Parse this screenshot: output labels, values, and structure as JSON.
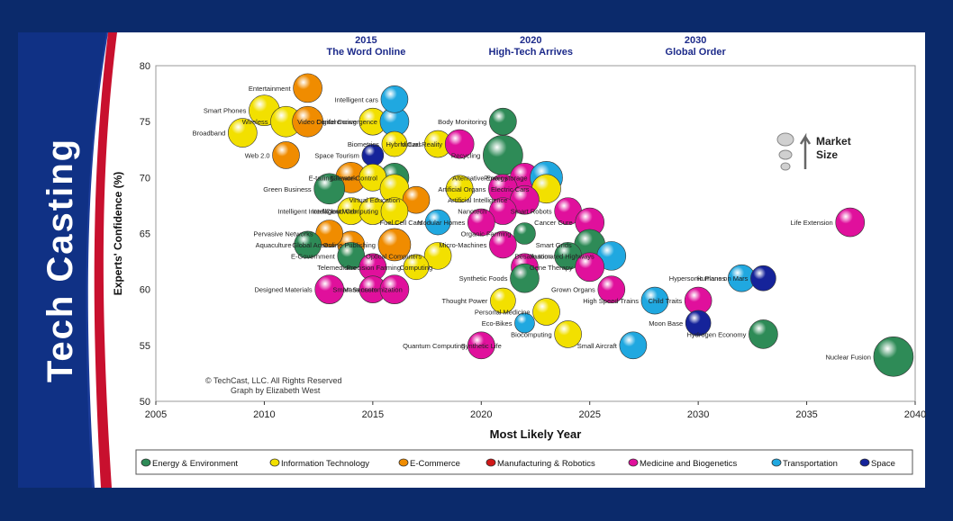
{
  "sidebar": {
    "title": "Tech Casting"
  },
  "copyright": {
    "line1": "© TechCast, LLC. All Rights Reserved",
    "line2": "Graph by Elizabeth West"
  },
  "size_legend": {
    "label_line1": "Market",
    "label_line2": "Size"
  },
  "chart_data": {
    "type": "scatter",
    "title": "",
    "xlabel": "Most Likely Year",
    "ylabel": "Experts' Confidence (%)",
    "xlim": [
      2005,
      2040
    ],
    "ylim": [
      50,
      80
    ],
    "xticks": [
      2005,
      2010,
      2015,
      2020,
      2025,
      2030,
      2035,
      2040
    ],
    "yticks": [
      50,
      55,
      60,
      65,
      70,
      75,
      80
    ],
    "grid": "horizontal dashed",
    "eras": [
      {
        "year": 2010,
        "label_year": "2015",
        "label": "The Word Online"
      },
      {
        "year": 2020,
        "label_year": "2020",
        "label": "High-Tech Arrives"
      },
      {
        "year": 2030,
        "label_year": "2030",
        "label": "Global Order"
      }
    ],
    "legend_position": "bottom",
    "categories": [
      {
        "name": "Energy & Environment",
        "color": "#2e8b57"
      },
      {
        "name": "Information Technology",
        "color": "#f2e000"
      },
      {
        "name": "E-Commerce",
        "color": "#f08c00"
      },
      {
        "name": "Manufacturing & Robotics",
        "color": "#d01818"
      },
      {
        "name": "Medicine and Biogenetics",
        "color": "#e0109c"
      },
      {
        "name": "Transportation",
        "color": "#20a8e0"
      },
      {
        "name": "Space",
        "color": "#15239a"
      }
    ],
    "points": [
      {
        "label": "Entertainment",
        "x": 2012,
        "y": 78,
        "size": 1.0,
        "cat": 2
      },
      {
        "label": "Smart Phones",
        "x": 2010,
        "y": 76,
        "size": 1.1,
        "cat": 1
      },
      {
        "label": "Broadband",
        "x": 2009,
        "y": 74,
        "size": 1.0,
        "cat": 1
      },
      {
        "label": "Wireless",
        "x": 2011,
        "y": 75,
        "size": 1.1,
        "cat": 1
      },
      {
        "label": "Web 2.0",
        "x": 2011,
        "y": 72,
        "size": 0.9,
        "cat": 2
      },
      {
        "label": "",
        "x": 2012,
        "y": 75,
        "size": 1.1,
        "cat": 2
      },
      {
        "label": "Video Conferencing",
        "x": 2015,
        "y": 75,
        "size": 0.9,
        "cat": 1
      },
      {
        "label": "Digital Convergence",
        "x": 2016,
        "y": 75,
        "size": 1.0,
        "cat": 5
      },
      {
        "label": "Intelligent cars",
        "x": 2016,
        "y": 77,
        "size": 0.9,
        "cat": 5
      },
      {
        "label": "Hybrid Cars",
        "x": 2018,
        "y": 73,
        "size": 0.9,
        "cat": 1
      },
      {
        "label": "Virtual Reality",
        "x": 2019,
        "y": 73,
        "size": 1.0,
        "cat": 4
      },
      {
        "label": "Space Tourism",
        "x": 2015,
        "y": 72,
        "size": 0.6,
        "cat": 6
      },
      {
        "label": "Biometrics",
        "x": 2016,
        "y": 73,
        "size": 0.8,
        "cat": 1
      },
      {
        "label": "Climate Control",
        "x": 2016,
        "y": 70,
        "size": 1.0,
        "cat": 0
      },
      {
        "label": "E-tailing",
        "x": 2014,
        "y": 70,
        "size": 1.1,
        "cat": 2
      },
      {
        "label": "Green Business",
        "x": 2013,
        "y": 69,
        "size": 1.1,
        "cat": 0
      },
      {
        "label": "Telework",
        "x": 2015,
        "y": 70,
        "size": 0.9,
        "cat": 1
      },
      {
        "label": "",
        "x": 2016,
        "y": 69,
        "size": 1.0,
        "cat": 1
      },
      {
        "label": "Virtual Education",
        "x": 2017,
        "y": 68,
        "size": 0.9,
        "cat": 2
      },
      {
        "label": "",
        "x": 2019,
        "y": 69,
        "size": 0.9,
        "cat": 1
      },
      {
        "label": "Intelligent Interface",
        "x": 2014,
        "y": 67,
        "size": 0.9,
        "cat": 1
      },
      {
        "label": "Intelligent Web",
        "x": 2015,
        "y": 67,
        "size": 0.9,
        "cat": 1
      },
      {
        "label": "Cloud Computing",
        "x": 2016,
        "y": 67,
        "size": 0.9,
        "cat": 1
      },
      {
        "label": "Global Access",
        "x": 2014,
        "y": 64,
        "size": 0.9,
        "cat": 2
      },
      {
        "label": "Pervasive Networks",
        "x": 2013,
        "y": 65,
        "size": 0.9,
        "cat": 2
      },
      {
        "label": "Fuel Cell Cars",
        "x": 2018,
        "y": 66,
        "size": 0.8,
        "cat": 5
      },
      {
        "label": "Online Publishing",
        "x": 2016,
        "y": 64,
        "size": 1.2,
        "cat": 2
      },
      {
        "label": "Aquaculture",
        "x": 2012,
        "y": 64,
        "size": 0.9,
        "cat": 0
      },
      {
        "label": "E-Government",
        "x": 2014,
        "y": 63,
        "size": 0.9,
        "cat": 0
      },
      {
        "label": "Optical Computers",
        "x": 2018,
        "y": 63,
        "size": 0.9,
        "cat": 1
      },
      {
        "label": "Precision Farming",
        "x": 2017,
        "y": 62,
        "size": 0.8,
        "cat": 1
      },
      {
        "label": "Telemedicine",
        "x": 2015,
        "y": 62,
        "size": 0.9,
        "cat": 4
      },
      {
        "label": "",
        "x": 2015,
        "y": 60,
        "size": 0.9,
        "cat": 4
      },
      {
        "label": "Designed Materials",
        "x": 2013,
        "y": 60,
        "size": 1.0,
        "cat": 4
      },
      {
        "label": "Smart Sensors",
        "x": 2016,
        "y": 60,
        "size": 1.0,
        "cat": 4
      },
      {
        "label": "Body Monitoring",
        "x": 2021,
        "y": 75,
        "size": 0.9,
        "cat": 0
      },
      {
        "label": "Recycling",
        "x": 2021,
        "y": 72,
        "size": 1.6,
        "cat": 0
      },
      {
        "label": "Alternative Energy",
        "x": 2022,
        "y": 70,
        "size": 1.0,
        "cat": 4
      },
      {
        "label": "Power storage",
        "x": 2023,
        "y": 70,
        "size": 1.2,
        "cat": 5
      },
      {
        "label": "Electric Cars",
        "x": 2023,
        "y": 69,
        "size": 1.0,
        "cat": 1
      },
      {
        "label": "Artificial Organs",
        "x": 2021,
        "y": 69,
        "size": 1.0,
        "cat": 4
      },
      {
        "label": "Artificial Intelligence",
        "x": 2022,
        "y": 68,
        "size": 1.0,
        "cat": 4
      },
      {
        "label": "Nanotech",
        "x": 2021,
        "y": 67,
        "size": 0.9,
        "cat": 4
      },
      {
        "label": "Modular Homes",
        "x": 2020,
        "y": 66,
        "size": 0.9,
        "cat": 4
      },
      {
        "label": "Smart Robots",
        "x": 2024,
        "y": 67,
        "size": 0.9,
        "cat": 4
      },
      {
        "label": "Cancer Cure",
        "x": 2025,
        "y": 66,
        "size": 1.0,
        "cat": 4
      },
      {
        "label": "Organic Farming",
        "x": 2022,
        "y": 65,
        "size": 0.6,
        "cat": 0
      },
      {
        "label": "Smart Grids",
        "x": 2025,
        "y": 64,
        "size": 1.1,
        "cat": 0
      },
      {
        "label": "Automated Highways",
        "x": 2026,
        "y": 63,
        "size": 1.0,
        "cat": 5
      },
      {
        "label": "Micro-Machines",
        "x": 2021,
        "y": 64,
        "size": 0.9,
        "cat": 4
      },
      {
        "label": "Desalination",
        "x": 2024,
        "y": 63,
        "size": 0.9,
        "cat": 0
      },
      {
        "label": "",
        "x": 2022,
        "y": 62,
        "size": 0.9,
        "cat": 4
      },
      {
        "label": "Synthetic Foods",
        "x": 2022,
        "y": 61,
        "size": 1.0,
        "cat": 0
      },
      {
        "label": "Gene Therapy",
        "x": 2025,
        "y": 62,
        "size": 1.0,
        "cat": 4
      },
      {
        "label": "Grown Organs",
        "x": 2026,
        "y": 60,
        "size": 0.9,
        "cat": 4
      },
      {
        "label": "Thought Power",
        "x": 2021,
        "y": 59,
        "size": 0.8,
        "cat": 1
      },
      {
        "label": "Personal Medicine",
        "x": 2023,
        "y": 58,
        "size": 0.9,
        "cat": 1
      },
      {
        "label": "Eco-Bikes",
        "x": 2022,
        "y": 57,
        "size": 0.5,
        "cat": 5
      },
      {
        "label": "Biocomputing",
        "x": 2024,
        "y": 56,
        "size": 0.9,
        "cat": 1
      },
      {
        "label": "High Speed Trains",
        "x": 2028,
        "y": 59,
        "size": 0.9,
        "cat": 5
      },
      {
        "label": "Quantum Computing",
        "x": 2020,
        "y": 55,
        "size": 0.9,
        "cat": 4
      },
      {
        "label": "Small Aircraft",
        "x": 2027,
        "y": 55,
        "size": 0.9,
        "cat": 5
      },
      {
        "label": "Child Traits",
        "x": 2030,
        "y": 59,
        "size": 0.9,
        "cat": 4
      },
      {
        "label": "Moon Base",
        "x": 2030,
        "y": 57,
        "size": 0.8,
        "cat": 6
      },
      {
        "label": "Hypersonic Planes",
        "x": 2032,
        "y": 61,
        "size": 0.9,
        "cat": 5
      },
      {
        "label": "Humans on Mars",
        "x": 2033,
        "y": 61,
        "size": 0.8,
        "cat": 6
      },
      {
        "label": "Hydrogen Economy",
        "x": 2033,
        "y": 56,
        "size": 1.0,
        "cat": 0
      },
      {
        "label": "Life Extension",
        "x": 2037,
        "y": 66,
        "size": 1.0,
        "cat": 4
      },
      {
        "label": "Nuclear Fusion",
        "x": 2039,
        "y": 54,
        "size": 1.6,
        "cat": 0
      },
      {
        "label": "Mass customization",
        "x": 2015,
        "y": 60,
        "size": 0.0,
        "cat": 2
      },
      {
        "label": "Computing",
        "x": 2017,
        "y": 62,
        "size": 0.0,
        "cat": 1
      },
      {
        "label": "Synthetic Life",
        "x": 2020,
        "y": 55,
        "size": 0.0,
        "cat": 4
      }
    ]
  }
}
